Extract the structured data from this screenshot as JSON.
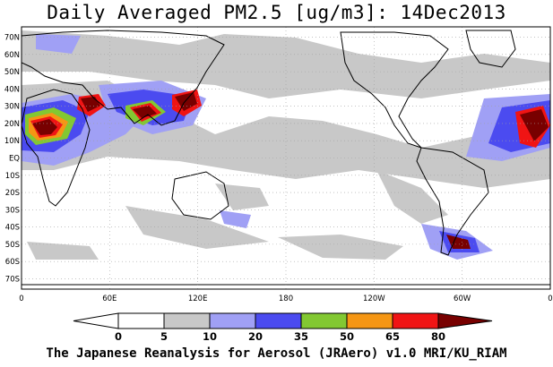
{
  "header": {
    "title": "Daily Averaged PM2.5 [ug/m3]: 14Dec2013"
  },
  "axes": {
    "lat_labels": [
      "70N",
      "60N",
      "50N",
      "40N",
      "30N",
      "20N",
      "10N",
      "EQ",
      "10S",
      "20S",
      "30S",
      "40S",
      "50S",
      "60S",
      "70S"
    ],
    "lon_labels": [
      "0",
      "60E",
      "120E",
      "180",
      "120W",
      "60W",
      "0"
    ]
  },
  "colorbar": {
    "ticks": [
      "0",
      "5",
      "10",
      "20",
      "35",
      "50",
      "65",
      "80"
    ],
    "colors": [
      "#ffffff",
      "#ffffff",
      "#c8c8c8",
      "#a0a0f5",
      "#4b4bf0",
      "#82c832",
      "#f59614",
      "#f01414",
      "#780000"
    ]
  },
  "layers": {
    "ocean": "#ffffff",
    "land": "#ffffff",
    "coast": "#000000",
    "grid": "#a0a0a0"
  },
  "footer": {
    "credit": "The Japanese Reanalysis for Aerosol (JRAero) v1.0 MRI/KU_RIAM"
  }
}
